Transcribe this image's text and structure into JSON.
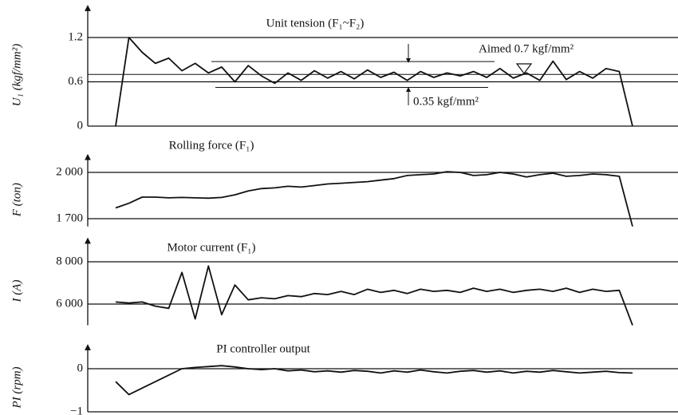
{
  "chart_data": [
    {
      "type": "line",
      "title": "Unit tension (F₁~F₂)",
      "ylabel": "U₁ (kgf/mm²)",
      "annotations": [
        "Aimed  0.7 kgf/mm²",
        "0.35 kgf/mm²"
      ],
      "reference_lines": [
        0.7,
        0.875,
        0.525
      ],
      "ylim": [
        0,
        1.6
      ],
      "yticks": [
        0,
        0.6,
        1.2
      ],
      "grid": true,
      "color": "#111",
      "categories": [
        null,
        null,
        null,
        null,
        null,
        null,
        null,
        null,
        null,
        null,
        null,
        null,
        null,
        null,
        null,
        null,
        null,
        null,
        null,
        null,
        null,
        null,
        null,
        null,
        null,
        null,
        null,
        null,
        null,
        null,
        null,
        null,
        null,
        null,
        null,
        null,
        null,
        null,
        null,
        null
      ],
      "values": [
        0,
        1.2,
        1.0,
        0.85,
        0.92,
        0.75,
        0.85,
        0.72,
        0.8,
        0.6,
        0.82,
        0.68,
        0.58,
        0.72,
        0.62,
        0.75,
        0.65,
        0.74,
        0.64,
        0.76,
        0.66,
        0.73,
        0.62,
        0.74,
        0.66,
        0.72,
        0.68,
        0.74,
        0.66,
        0.78,
        0.65,
        0.72,
        0.62,
        0.88,
        0.63,
        0.74,
        0.65,
        0.78,
        0.74,
        0
      ]
    },
    {
      "type": "line",
      "title": "Rolling force (F₁)",
      "ylabel": "F (ton)",
      "ylim": [
        1650,
        2100
      ],
      "yticks": [
        {
          "value": 1700,
          "label": "1 700"
        },
        {
          "value": 2000,
          "label": "2 000"
        }
      ],
      "grid": true,
      "color": "#111",
      "categories": [
        null,
        null,
        null,
        null,
        null,
        null,
        null,
        null,
        null,
        null,
        null,
        null,
        null,
        null,
        null,
        null,
        null,
        null,
        null,
        null,
        null,
        null,
        null,
        null,
        null,
        null,
        null,
        null,
        null,
        null,
        null,
        null,
        null,
        null,
        null,
        null,
        null,
        null,
        null,
        null
      ],
      "values": [
        1770,
        1800,
        1840,
        1840,
        1835,
        1838,
        1835,
        1833,
        1838,
        1855,
        1880,
        1895,
        1900,
        1910,
        1905,
        1915,
        1925,
        1930,
        1935,
        1940,
        1950,
        1960,
        1980,
        1985,
        1990,
        2005,
        2000,
        1980,
        1985,
        2000,
        1990,
        1970,
        1985,
        1995,
        1975,
        1980,
        1990,
        1985,
        1975,
        1650
      ]
    },
    {
      "type": "line",
      "title": "Motor current (F₁)",
      "ylabel": "I (A)",
      "ylim": [
        5000,
        9000
      ],
      "yticks": [
        {
          "value": 6000,
          "label": "6 000"
        },
        {
          "value": 8000,
          "label": "8 000"
        }
      ],
      "grid": true,
      "color": "#111",
      "categories": [
        null,
        null,
        null,
        null,
        null,
        null,
        null,
        null,
        null,
        null,
        null,
        null,
        null,
        null,
        null,
        null,
        null,
        null,
        null,
        null,
        null,
        null,
        null,
        null,
        null,
        null,
        null,
        null,
        null,
        null,
        null,
        null,
        null,
        null,
        null,
        null,
        null,
        null,
        null,
        null
      ],
      "values": [
        6100,
        6050,
        6100,
        5900,
        5800,
        7500,
        5300,
        7800,
        5500,
        6900,
        6200,
        6300,
        6250,
        6400,
        6350,
        6500,
        6450,
        6600,
        6450,
        6700,
        6550,
        6650,
        6500,
        6700,
        6600,
        6650,
        6550,
        6750,
        6600,
        6700,
        6550,
        6650,
        6700,
        6600,
        6750,
        6550,
        6700,
        6600,
        6650,
        5000
      ]
    },
    {
      "type": "line",
      "title": "PI controller output",
      "ylabel": "PI (rpm)",
      "ylim": [
        -1,
        0.5
      ],
      "yticks": [
        {
          "value": -1,
          "label": "−1"
        },
        0
      ],
      "grid": true,
      "color": "#111",
      "categories": [
        null,
        null,
        null,
        null,
        null,
        null,
        null,
        null,
        null,
        null,
        null,
        null,
        null,
        null,
        null,
        null,
        null,
        null,
        null,
        null,
        null,
        null,
        null,
        null,
        null,
        null,
        null,
        null,
        null,
        null,
        null,
        null,
        null,
        null,
        null,
        null,
        null,
        null,
        null,
        null
      ],
      "values": [
        -0.3,
        -0.6,
        -0.45,
        -0.3,
        -0.15,
        0,
        0.03,
        0.05,
        0.07,
        0.04,
        0,
        -0.02,
        0,
        -0.05,
        -0.03,
        -0.07,
        -0.05,
        -0.08,
        -0.04,
        -0.06,
        -0.1,
        -0.05,
        -0.08,
        -0.03,
        -0.07,
        -0.1,
        -0.06,
        -0.04,
        -0.08,
        -0.05,
        -0.1,
        -0.06,
        -0.08,
        -0.04,
        -0.07,
        -0.1,
        -0.08,
        -0.06,
        -0.09,
        -0.1
      ]
    }
  ]
}
